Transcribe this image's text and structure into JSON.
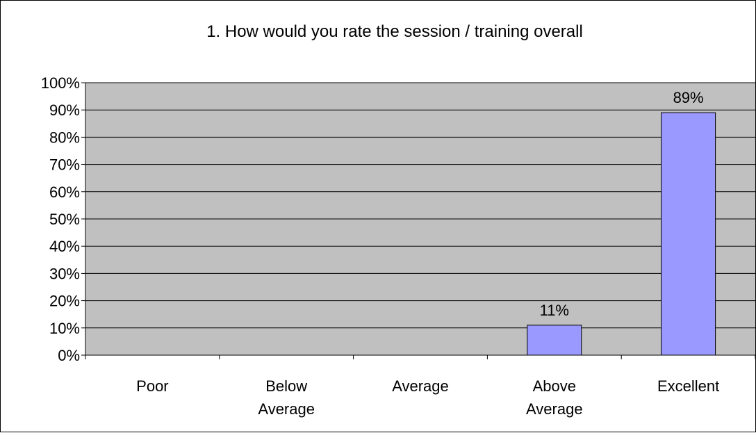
{
  "chart_data": {
    "type": "bar",
    "title": "1. How would you rate the session  / training overall",
    "categories": [
      [
        "Poor"
      ],
      [
        "Below",
        "Average"
      ],
      [
        "Average"
      ],
      [
        "Above",
        "Average"
      ],
      [
        "Excellent"
      ]
    ],
    "values": [
      0,
      0,
      0,
      11,
      89
    ],
    "data_labels": [
      "",
      "",
      "",
      "11%",
      "89%"
    ],
    "y_ticks": [
      "0%",
      "10%",
      "20%",
      "30%",
      "40%",
      "50%",
      "60%",
      "70%",
      "80%",
      "90%",
      "100%"
    ],
    "ylim": [
      0,
      100
    ],
    "grid": true,
    "legend": "none",
    "colors": {
      "bar": "#9999ff",
      "plot_bg": "#c0c0c0",
      "grid": "#000000"
    }
  }
}
